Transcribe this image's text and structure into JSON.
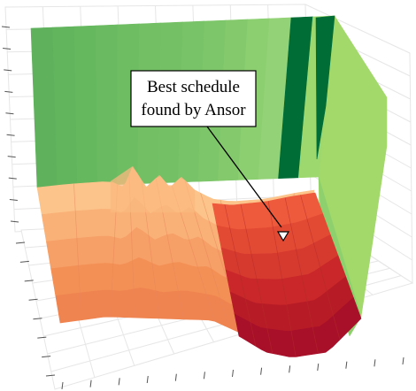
{
  "chart_data": {
    "type": "surface",
    "title": "",
    "xlabel": "",
    "ylabel": "",
    "zlabel": "",
    "grid": true,
    "colormap": [
      "#a6d96a",
      "#66bd63",
      "#1a9850",
      "#006837",
      "#fdae61",
      "#f46d43",
      "#d73027",
      "#a50026"
    ],
    "high_plateau": {
      "columns": 14,
      "shades": [
        "#5fb15c",
        "#62b45d",
        "#66b85f",
        "#6aba61",
        "#6fbd63",
        "#72bf64",
        "#74c064",
        "#78c267",
        "#7dc669",
        "#84ca6d",
        "#8bcf71",
        "#93d276",
        "#006d37",
        "#9dd86f"
      ]
    },
    "right_wall_color": "#a2d96a",
    "low_region": {
      "rows": [
        "#fcc48a",
        "#f9b178",
        "#f69f66",
        "#f39056",
        "#ef8450"
      ],
      "columns": 12
    },
    "valley": {
      "rows": [
        "#ee5a3c",
        "#e34a33",
        "#d63a2f",
        "#c9272a",
        "#b71c26",
        "#a8102a"
      ]
    },
    "annotation": {
      "line1": "Best schedule",
      "line2": "found by Ansor"
    }
  }
}
